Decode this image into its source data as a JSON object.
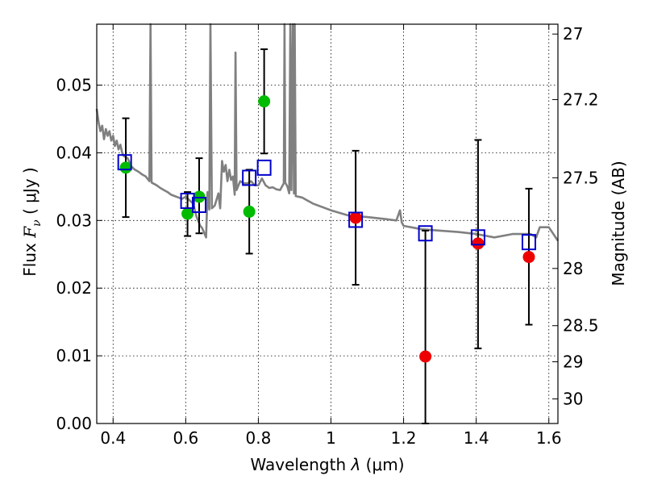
{
  "chart_data": {
    "type": "scatter",
    "title": "",
    "xlabel_prefix": "Wavelength  ",
    "xlabel_symbol": "λ",
    "xlabel_unit": " (μm)",
    "ylabel_prefix": "Flux  ",
    "ylabel_symbol": "F",
    "ylabel_subscript": "ν",
    "ylabel_unit": "  ( μJy )",
    "y2label": "Magnitude (AB)",
    "xlim": [
      0.355,
      1.625
    ],
    "ylim": [
      0.0,
      0.059
    ],
    "grid": true,
    "x_ticks": [
      0.4,
      0.6,
      0.8,
      1.0,
      1.2,
      1.4,
      1.6
    ],
    "x_tick_labels": [
      "0.4",
      "0.6",
      "0.8",
      "1",
      "1.2",
      "1.4",
      "1.6"
    ],
    "y_ticks": [
      0.0,
      0.01,
      0.02,
      0.03,
      0.04,
      0.05
    ],
    "y_tick_labels": [
      "0.00",
      "0.01",
      "0.02",
      "0.03",
      "0.04",
      "0.05"
    ],
    "y2_ticks": [
      27,
      27.2,
      27.5,
      28,
      28.5,
      29,
      30
    ],
    "y2_tick_labels": [
      "27",
      "27.2",
      "27.5",
      "28",
      "28.5",
      "29",
      "30"
    ],
    "colors": {
      "model": "#808080",
      "green": "#00bb00",
      "red": "#ee0000",
      "box": "#0000cc",
      "errorbar": "#000000"
    },
    "model_spectrum": [
      [
        0.355,
        0.0465
      ],
      [
        0.36,
        0.0445
      ],
      [
        0.365,
        0.0432
      ],
      [
        0.37,
        0.044
      ],
      [
        0.375,
        0.042
      ],
      [
        0.38,
        0.0435
      ],
      [
        0.385,
        0.0425
      ],
      [
        0.39,
        0.0432
      ],
      [
        0.395,
        0.0418
      ],
      [
        0.4,
        0.0425
      ],
      [
        0.405,
        0.041
      ],
      [
        0.41,
        0.0418
      ],
      [
        0.415,
        0.0405
      ],
      [
        0.42,
        0.0412
      ],
      [
        0.425,
        0.04
      ],
      [
        0.43,
        0.0395
      ],
      [
        0.44,
        0.0392
      ],
      [
        0.45,
        0.038
      ],
      [
        0.46,
        0.0375
      ],
      [
        0.47,
        0.0372
      ],
      [
        0.48,
        0.0368
      ],
      [
        0.49,
        0.0365
      ],
      [
        0.5,
        0.0358
      ],
      [
        0.503,
        0.059
      ],
      [
        0.506,
        0.0356
      ],
      [
        0.52,
        0.0352
      ],
      [
        0.53,
        0.0348
      ],
      [
        0.54,
        0.0345
      ],
      [
        0.55,
        0.0342
      ],
      [
        0.56,
        0.0338
      ],
      [
        0.57,
        0.0336
      ],
      [
        0.58,
        0.0334
      ],
      [
        0.59,
        0.0332
      ],
      [
        0.6,
        0.0335
      ],
      [
        0.61,
        0.033
      ],
      [
        0.62,
        0.0325
      ],
      [
        0.63,
        0.0305
      ],
      [
        0.64,
        0.0292
      ],
      [
        0.645,
        0.0289
      ],
      [
        0.656,
        0.0275
      ],
      [
        0.66,
        0.0342
      ],
      [
        0.665,
        0.0316
      ],
      [
        0.668,
        0.059
      ],
      [
        0.672,
        0.0318
      ],
      [
        0.68,
        0.0322
      ],
      [
        0.69,
        0.034
      ],
      [
        0.695,
        0.0318
      ],
      [
        0.7,
        0.0388
      ],
      [
        0.705,
        0.0372
      ],
      [
        0.71,
        0.0382
      ],
      [
        0.715,
        0.0358
      ],
      [
        0.72,
        0.0375
      ],
      [
        0.725,
        0.036
      ],
      [
        0.73,
        0.0365
      ],
      [
        0.735,
        0.0338
      ],
      [
        0.737,
        0.0548
      ],
      [
        0.74,
        0.0345
      ],
      [
        0.75,
        0.0358
      ],
      [
        0.76,
        0.0355
      ],
      [
        0.77,
        0.0355
      ],
      [
        0.78,
        0.0358
      ],
      [
        0.79,
        0.0352
      ],
      [
        0.8,
        0.0352
      ],
      [
        0.81,
        0.0362
      ],
      [
        0.82,
        0.0352
      ],
      [
        0.83,
        0.0348
      ],
      [
        0.84,
        0.0349
      ],
      [
        0.85,
        0.0346
      ],
      [
        0.86,
        0.0345
      ],
      [
        0.87,
        0.0355
      ],
      [
        0.872,
        0.059
      ],
      [
        0.874,
        0.0356
      ],
      [
        0.88,
        0.035
      ],
      [
        0.885,
        0.034
      ],
      [
        0.888,
        0.059
      ],
      [
        0.891,
        0.0345
      ],
      [
        0.895,
        0.059
      ],
      [
        0.898,
        0.034
      ],
      [
        0.9,
        0.059
      ],
      [
        0.903,
        0.0336
      ],
      [
        0.92,
        0.0334
      ],
      [
        0.95,
        0.0325
      ],
      [
        1.0,
        0.0315
      ],
      [
        1.05,
        0.0307
      ],
      [
        1.1,
        0.0305
      ],
      [
        1.15,
        0.0302
      ],
      [
        1.18,
        0.03
      ],
      [
        1.19,
        0.0315
      ],
      [
        1.195,
        0.0297
      ],
      [
        1.2,
        0.0292
      ],
      [
        1.25,
        0.0287
      ],
      [
        1.3,
        0.0285
      ],
      [
        1.35,
        0.0283
      ],
      [
        1.4,
        0.028
      ],
      [
        1.45,
        0.0275
      ],
      [
        1.5,
        0.028
      ],
      [
        1.55,
        0.028
      ],
      [
        1.565,
        0.0275
      ],
      [
        1.575,
        0.029
      ],
      [
        1.6,
        0.029
      ],
      [
        1.625,
        0.027
      ]
    ],
    "model_boxes": [
      {
        "x": 0.432,
        "y": 0.0386
      },
      {
        "x": 0.605,
        "y": 0.0329
      },
      {
        "x": 0.637,
        "y": 0.0323
      },
      {
        "x": 0.775,
        "y": 0.0363
      },
      {
        "x": 0.816,
        "y": 0.0378
      },
      {
        "x": 1.068,
        "y": 0.0301
      },
      {
        "x": 1.26,
        "y": 0.0281
      },
      {
        "x": 1.405,
        "y": 0.0275
      },
      {
        "x": 1.545,
        "y": 0.0268
      }
    ],
    "observed_points": [
      {
        "x": 0.435,
        "y": 0.0378,
        "yerr_low": 0.0305,
        "yerr_high": 0.0451,
        "color": "green"
      },
      {
        "x": 0.605,
        "y": 0.031,
        "yerr_low": 0.0277,
        "yerr_high": 0.0342,
        "color": "green"
      },
      {
        "x": 0.637,
        "y": 0.0335,
        "yerr_low": 0.0281,
        "yerr_high": 0.0392,
        "color": "green"
      },
      {
        "x": 0.775,
        "y": 0.0313,
        "yerr_low": 0.0251,
        "yerr_high": 0.0375,
        "color": "green"
      },
      {
        "x": 0.816,
        "y": 0.0476,
        "yerr_low": 0.0399,
        "yerr_high": 0.0553,
        "color": "green"
      },
      {
        "x": 1.068,
        "y": 0.0304,
        "yerr_low": 0.0205,
        "yerr_high": 0.0403,
        "color": "red"
      },
      {
        "x": 1.26,
        "y": 0.0099,
        "yerr_low": 0.0,
        "yerr_high": 0.0285,
        "color": "red"
      },
      {
        "x": 1.405,
        "y": 0.0266,
        "yerr_low": 0.0111,
        "yerr_high": 0.0419,
        "color": "red"
      },
      {
        "x": 1.545,
        "y": 0.0246,
        "yerr_low": 0.0146,
        "yerr_high": 0.0347,
        "color": "red"
      }
    ]
  }
}
